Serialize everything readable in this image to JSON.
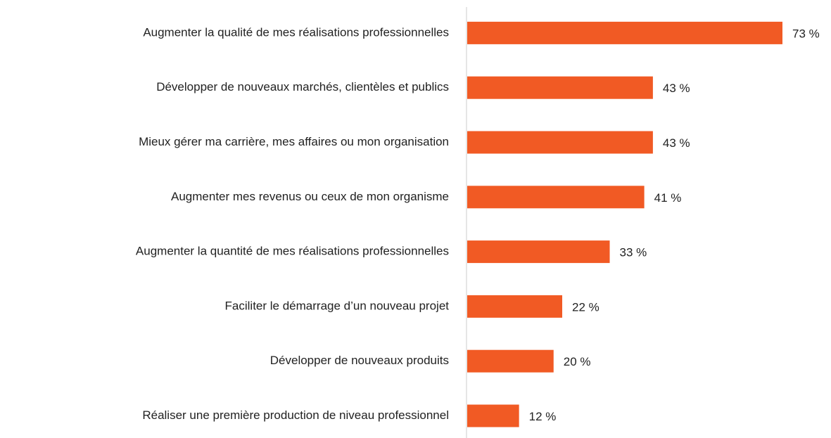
{
  "chart_data": {
    "type": "hbar",
    "categories": [
      "Augmenter la qualité de mes réalisations professionnelles",
      "Développer de nouveaux marchés, clientèles et publics",
      "Mieux gérer ma carrière, mes affaires ou mon organisation",
      "Augmenter mes revenus ou ceux de mon organisme",
      "Augmenter la quantité de mes réalisations professionnelles",
      "Faciliter le démarrage d’un nouveau projet",
      "Développer de nouveaux produits",
      "Réaliser une première production de niveau professionnel"
    ],
    "values": [
      73,
      43,
      43,
      41,
      33,
      22,
      20,
      12
    ],
    "value_labels": [
      "73 %",
      "43 %",
      "43 %",
      "41 %",
      "33 %",
      "22 %",
      "20 %",
      "12 %"
    ],
    "color": "#f15a24",
    "xlim": [
      0,
      75
    ]
  }
}
